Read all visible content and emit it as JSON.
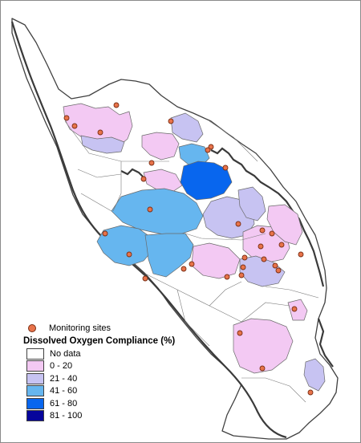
{
  "legend": {
    "sites_label": "Monitoring sites",
    "title": "Dissolved Oxygen Compliance (%)",
    "classes": [
      {
        "label": "No data",
        "color": "#ffffff"
      },
      {
        "label": "0 - 20",
        "color": "#f3c9f3"
      },
      {
        "label": "21 - 40",
        "color": "#c7c3f2"
      },
      {
        "label": "41 - 60",
        "color": "#66b6ef"
      },
      {
        "label": "61 - 80",
        "color": "#0866ee"
      },
      {
        "label": "81 - 100",
        "color": "#06059c"
      }
    ]
  },
  "colors": {
    "land_outline": "#404040",
    "coastline": "#3a3a3a",
    "site_fill": "#e8734a",
    "site_edge": "#7a2e14"
  }
}
